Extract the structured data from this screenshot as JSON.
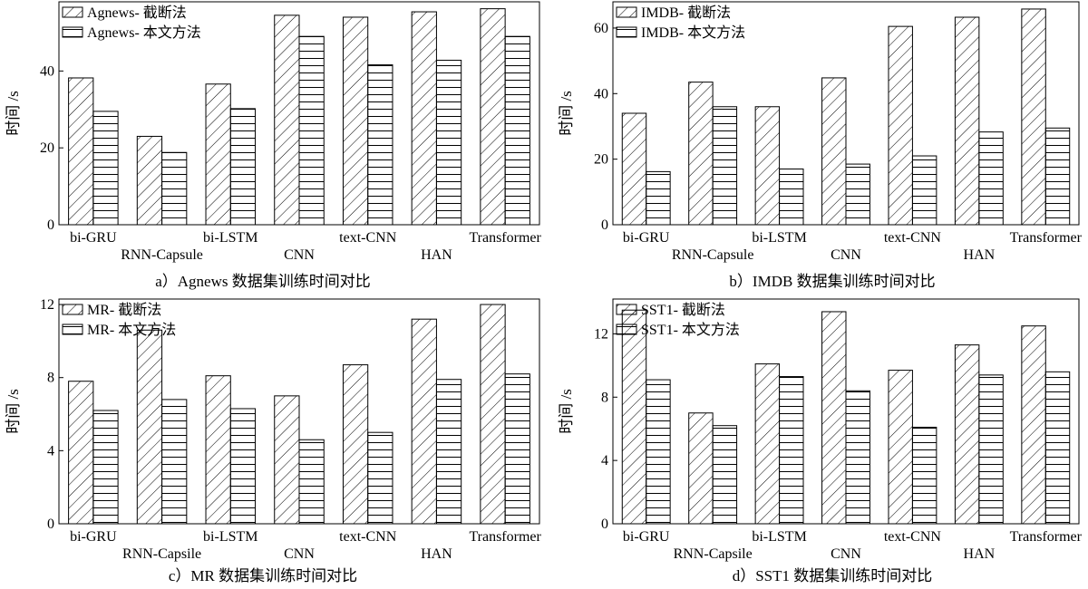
{
  "chart_data": [
    {
      "type": "bar",
      "caption": "a）Agnews 数据集训练时间对比",
      "ylabel": "时间 /s",
      "ylim": [
        0,
        58
      ],
      "yticks": [
        0,
        20,
        40
      ],
      "categories": [
        "bi-GRU",
        "RNN-Capsule",
        "bi-LSTM",
        "CNN",
        "text-CNN",
        "HAN",
        "Transformer"
      ],
      "series": [
        {
          "name": "Agnews- 截断法",
          "values": [
            38.2,
            23.0,
            36.6,
            54.5,
            54.0,
            55.4,
            56.2
          ]
        },
        {
          "name": "Agnews- 本文方法",
          "values": [
            29.5,
            18.8,
            30.2,
            49.0,
            41.6,
            42.8,
            49.0
          ]
        }
      ],
      "legend": "top-left"
    },
    {
      "type": "bar",
      "caption": "b）IMDB 数据集训练时间对比",
      "ylabel": "时间 /s",
      "ylim": [
        0,
        68
      ],
      "yticks": [
        0,
        20,
        40,
        60
      ],
      "categories": [
        "bi-GRU",
        "RNN-Capsule",
        "bi-LSTM",
        "CNN",
        "text-CNN",
        "HAN",
        "Transformer"
      ],
      "series": [
        {
          "name": "IMDB- 截断法",
          "values": [
            34.0,
            43.5,
            36.0,
            44.8,
            60.5,
            63.3,
            65.8
          ]
        },
        {
          "name": "IMDB- 本文方法",
          "values": [
            16.2,
            36.0,
            17.0,
            18.5,
            21.0,
            28.3,
            29.5
          ]
        }
      ],
      "legend": "top-left"
    },
    {
      "type": "bar",
      "caption": "c）MR 数据集训练时间对比",
      "ylabel": "时间 /s",
      "ylim": [
        0,
        12.3
      ],
      "yticks": [
        0,
        4,
        8,
        12
      ],
      "categories": [
        "bi-GRU",
        "RNN-Capsile",
        "bi-LSTM",
        "CNN",
        "text-CNN",
        "HAN",
        "Transformer"
      ],
      "series": [
        {
          "name": "MR- 截断法",
          "values": [
            7.8,
            10.6,
            8.1,
            7.0,
            8.7,
            11.2,
            12.0
          ]
        },
        {
          "name": "MR- 本文方法",
          "values": [
            6.2,
            6.8,
            6.3,
            4.6,
            5.0,
            7.9,
            8.2
          ]
        }
      ],
      "legend": "top-left"
    },
    {
      "type": "bar",
      "caption": "d）SST1 数据集训练时间对比",
      "ylabel": "时间 /s",
      "ylim": [
        0,
        14.2
      ],
      "yticks": [
        0,
        4,
        8,
        12
      ],
      "categories": [
        "bi-GRU",
        "RNN-Capsile",
        "bi-LSTM",
        "CNN",
        "text-CNN",
        "HAN",
        "Transformer"
      ],
      "series": [
        {
          "name": "SST1- 截断法",
          "values": [
            13.5,
            7.0,
            10.1,
            13.4,
            9.7,
            11.3,
            12.5
          ]
        },
        {
          "name": "SST1- 本文方法",
          "values": [
            9.1,
            6.2,
            9.3,
            8.4,
            6.1,
            9.4,
            9.6
          ]
        }
      ],
      "legend": "top-left"
    }
  ]
}
